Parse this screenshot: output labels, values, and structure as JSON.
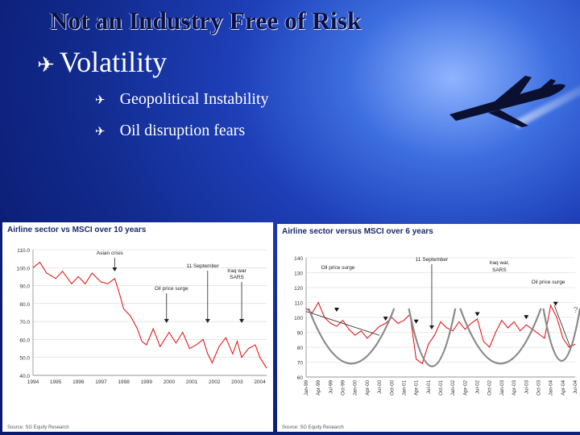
{
  "slide": {
    "title": "Not an Industry Free of Risk",
    "bullet": "Volatility",
    "bullet_icon": "airplane-icon",
    "sub_bullets": [
      "Geopolitical Instability",
      "Oil disruption fears"
    ],
    "colors": {
      "background": "#112a8c",
      "title": "#0a1142",
      "text": "#ffffff",
      "series": "#e21b1b"
    }
  },
  "chart_data": [
    {
      "type": "line",
      "title": "Airline sector vs MSCI over 10 years",
      "source": "Source: SG Equity Research",
      "x_ticks": [
        "1994",
        "1995",
        "1996",
        "1997",
        "1998",
        "1999",
        "2000",
        "2001",
        "2002",
        "2003",
        "2004"
      ],
      "ylim": [
        40,
        110
      ],
      "y_ticks": [
        "40.0",
        "50.0",
        "60.0",
        "70.0",
        "80.0",
        "90.0",
        "100.0",
        "110.0"
      ],
      "x": [
        1994.0,
        1994.3,
        1994.6,
        1995.0,
        1995.3,
        1995.7,
        1996.0,
        1996.3,
        1996.6,
        1997.0,
        1997.3,
        1997.6,
        1997.8,
        1998.0,
        1998.3,
        1998.6,
        1998.8,
        1999.0,
        1999.3,
        1999.6,
        2000.0,
        2000.3,
        2000.6,
        2000.9,
        2001.2,
        2001.5,
        2001.7,
        2001.9,
        2002.2,
        2002.5,
        2002.8,
        2003.0,
        2003.2,
        2003.5,
        2003.8,
        2004.0,
        2004.3
      ],
      "y": [
        100,
        103,
        97,
        94,
        98,
        91,
        95,
        91,
        97,
        92,
        91,
        94,
        86,
        77,
        73,
        66,
        59,
        57,
        66,
        56,
        64,
        58,
        64,
        55,
        57,
        60,
        52,
        47,
        56,
        61,
        52,
        59,
        50,
        55,
        57,
        50,
        44
      ],
      "annotations": [
        {
          "label": "Asian crisis",
          "x": 1997.6
        },
        {
          "label": "11 September",
          "x": 2001.7
        },
        {
          "label": "Iraq war\nSARS",
          "x": 2003.2
        },
        {
          "label": "Oil price surge",
          "x": 2000.1
        }
      ],
      "grid": true
    },
    {
      "type": "line",
      "title": "Airline sector versus MSCI over 6 years",
      "source": "Source: SG Equity Research",
      "x_ticks": [
        "Jan-99",
        "Apr-99",
        "Jul-99",
        "Oct-99",
        "Jan-00",
        "Apr-00",
        "Jul-00",
        "Oct-00",
        "Jan-01",
        "Apr-01",
        "Jul-01",
        "Oct-01",
        "Jan-02",
        "Apr-02",
        "Jul-02",
        "Oct-02",
        "Jan-03",
        "Apr-03",
        "Jul-03",
        "Oct-03",
        "Jan-04",
        "Apr-04",
        "Jul-04"
      ],
      "ylim": [
        60,
        140
      ],
      "y_ticks": [
        "60",
        "70",
        "80",
        "90",
        "100",
        "110",
        "120",
        "130",
        "140"
      ],
      "x": [
        0,
        0.5,
        1,
        1.5,
        2,
        2.5,
        3,
        3.5,
        4,
        4.5,
        5,
        5.5,
        6,
        6.5,
        7,
        7.5,
        8,
        8.5,
        9,
        9.5,
        10,
        10.5,
        11,
        11.5,
        12,
        12.5,
        13,
        13.5,
        14,
        14.5,
        15,
        15.5,
        16,
        16.5,
        17,
        17.5,
        18,
        18.5,
        19,
        19.5,
        20,
        20.5,
        21,
        21.5,
        22
      ],
      "y": [
        106,
        103,
        110,
        100,
        96,
        94,
        98,
        92,
        88,
        91,
        86,
        90,
        94,
        96,
        100,
        96,
        98,
        102,
        72,
        69,
        82,
        88,
        97,
        93,
        91,
        97,
        92,
        96,
        99,
        84,
        80,
        90,
        98,
        93,
        97,
        91,
        95,
        92,
        89,
        86,
        108,
        100,
        86,
        80,
        82
      ],
      "annotations": [
        {
          "label": "11 September",
          "x": 10.8
        },
        {
          "label": "Oil price surge",
          "x": 2.6
        },
        {
          "label": "Iraq war,\nSARS",
          "x": 15.8
        },
        {
          "label": "Oil price surge",
          "x": 19.8
        },
        {
          "label": "?",
          "x": 22.3
        }
      ],
      "grid": true
    }
  ]
}
